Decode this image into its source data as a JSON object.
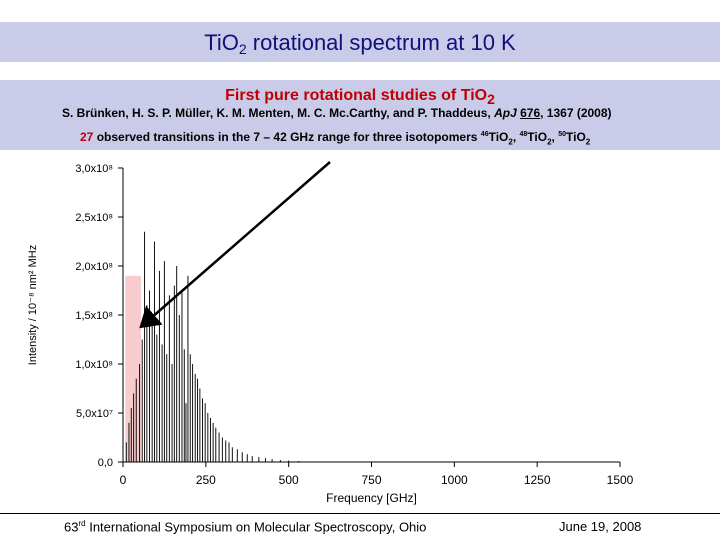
{
  "slide": {
    "title_main": "TiO",
    "title_sub": "2",
    "title_rest": " rotational spectrum at  10 K",
    "subtitle_main": "First pure rotational studies of TiO",
    "subtitle_sub": "2",
    "authors": "S. Brünken, H. S. P. Müller, K. M. Menten, M. C. Mc.Carthy, and P. Thaddeus, ",
    "journal": "ApJ",
    "volume": "676",
    "pages": ", 1367 (2008)",
    "transitions_count": "27",
    "transitions_text": " observed transitions in the 7 – 42 GHz range for three isotopomers ",
    "iso1_mass": "46",
    "iso1": "TiO",
    "iso1_sub": "2",
    "sep1": ", ",
    "iso2_mass": "48",
    "iso2": "TiO",
    "iso2_sub": "2",
    "sep2": ", ",
    "iso3_mass": "50",
    "iso3": "TiO",
    "iso3_sub": "2"
  },
  "footer": {
    "symposium_num": "63",
    "symposium_sup": "rd",
    "symposium_rest": " International Symposium on Molecular Spectroscopy, Ohio",
    "date": "June 19, 2008"
  },
  "colors": {
    "band": "#c9cbe9",
    "title": "#10107a",
    "highlight": "#c00000",
    "observed_range": "#f8cccc"
  },
  "chart_data": {
    "type": "bar",
    "xlabel": "Frequency [GHz]",
    "ylabel": "Intensity / 10⁻⁸ nm² MHz",
    "xlim": [
      0,
      1500
    ],
    "ylim": [
      0,
      300000000.0
    ],
    "x_ticks": [
      0,
      250,
      500,
      750,
      1000,
      1250,
      1500
    ],
    "x_tick_labels": [
      "0",
      "250",
      "500",
      "750",
      "1000",
      "1250",
      "1500"
    ],
    "y_ticks": [
      0,
      50000000.0,
      100000000.0,
      150000000.0,
      200000000.0,
      250000000.0,
      300000000.0
    ],
    "y_tick_labels": [
      "0,0",
      "5,0x10⁷",
      "1,0x10⁸",
      "1,5x10⁸",
      "2,0x10⁸",
      "2,5x10⁸",
      "3,0x10⁸"
    ],
    "observed_range": [
      7,
      42
    ],
    "observed_range_top": 190000000.0,
    "grid": false,
    "annotation": "arrow pointing to observed range",
    "x": [
      10,
      18,
      25,
      32,
      40,
      50,
      58,
      65,
      72,
      80,
      88,
      95,
      102,
      110,
      118,
      125,
      132,
      140,
      148,
      155,
      162,
      170,
      178,
      185,
      190,
      196,
      203,
      210,
      218,
      225,
      232,
      240,
      248,
      256,
      264,
      272,
      280,
      290,
      300,
      310,
      320,
      330,
      345,
      360,
      375,
      390,
      410,
      430,
      450,
      475,
      500,
      530
    ],
    "values": [
      20000000.0,
      40000000.0,
      55000000.0,
      70000000.0,
      85000000.0,
      100000000.0,
      125000000.0,
      235000000.0,
      160000000.0,
      175000000.0,
      145000000.0,
      225000000.0,
      130000000.0,
      195000000.0,
      120000000.0,
      205000000.0,
      110000000.0,
      170000000.0,
      100000000.0,
      180000000.0,
      200000000.0,
      150000000.0,
      175000000.0,
      115000000.0,
      60000000.0,
      190000000.0,
      110000000.0,
      100000000.0,
      90000000.0,
      85000000.0,
      75000000.0,
      65000000.0,
      60000000.0,
      50000000.0,
      45000000.0,
      40000000.0,
      35000000.0,
      30000000.0,
      25000000.0,
      22000000.0,
      20000000.0,
      15000000.0,
      13000000.0,
      10000000.0,
      8000000.0,
      6000000.0,
      5000000.0,
      4000000.0,
      3000000.0,
      2000000.0,
      1500000.0,
      1000000.0
    ]
  }
}
